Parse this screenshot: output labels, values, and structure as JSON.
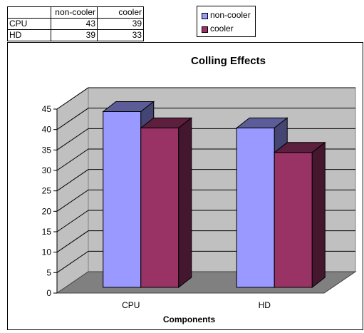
{
  "table": {
    "headers": [
      "",
      "non-cooler",
      "cooler"
    ],
    "rows": [
      {
        "label": "CPU",
        "values": [
          "43",
          "39"
        ]
      },
      {
        "label": "HD",
        "values": [
          "39",
          "33"
        ]
      }
    ]
  },
  "legend": {
    "items": [
      {
        "label": "non-cooler",
        "color": "#9999FF"
      },
      {
        "label": "cooler",
        "color": "#993366"
      }
    ]
  },
  "chart_data": {
    "type": "bar",
    "title": "Colling Effects",
    "xlabel": "Components",
    "ylabel": "",
    "categories": [
      "CPU",
      "HD"
    ],
    "series": [
      {
        "name": "non-cooler",
        "values": [
          43,
          39
        ],
        "color": "#9999FF"
      },
      {
        "name": "cooler",
        "values": [
          39,
          33
        ],
        "color": "#993366"
      }
    ],
    "ylim": [
      0,
      45
    ],
    "yticks": [
      0,
      5,
      10,
      15,
      20,
      25,
      30,
      35,
      40,
      45
    ],
    "grid": true,
    "legend_position": "top"
  }
}
